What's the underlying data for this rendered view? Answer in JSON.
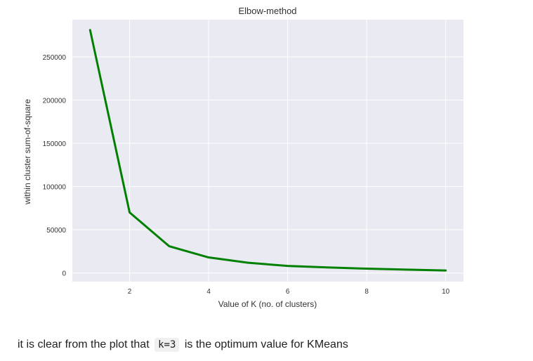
{
  "chart_data": {
    "type": "line",
    "title": "Elbow-method",
    "xlabel": "Value of K (no. of clusters)",
    "ylabel": "within cluster sum-of-square",
    "x": [
      1,
      2,
      3,
      4,
      5,
      6,
      7,
      8,
      9,
      10
    ],
    "series": [
      {
        "values": [
          281000,
          70000,
          31000,
          18000,
          11800,
          8200,
          6400,
          5000,
          3900,
          2900
        ],
        "color": "#008000"
      }
    ],
    "xlim": [
      0.55,
      10.45
    ],
    "ylim": [
      -10000,
      293000
    ],
    "xticks": [
      2,
      4,
      6,
      8,
      10
    ],
    "yticks": [
      0,
      50000,
      100000,
      150000,
      200000,
      250000
    ],
    "grid": true,
    "background": "#eaeaf2"
  },
  "caption": {
    "before": "it is clear from the plot that",
    "code": "k=3",
    "after": "is the optimum value for KMeans"
  }
}
